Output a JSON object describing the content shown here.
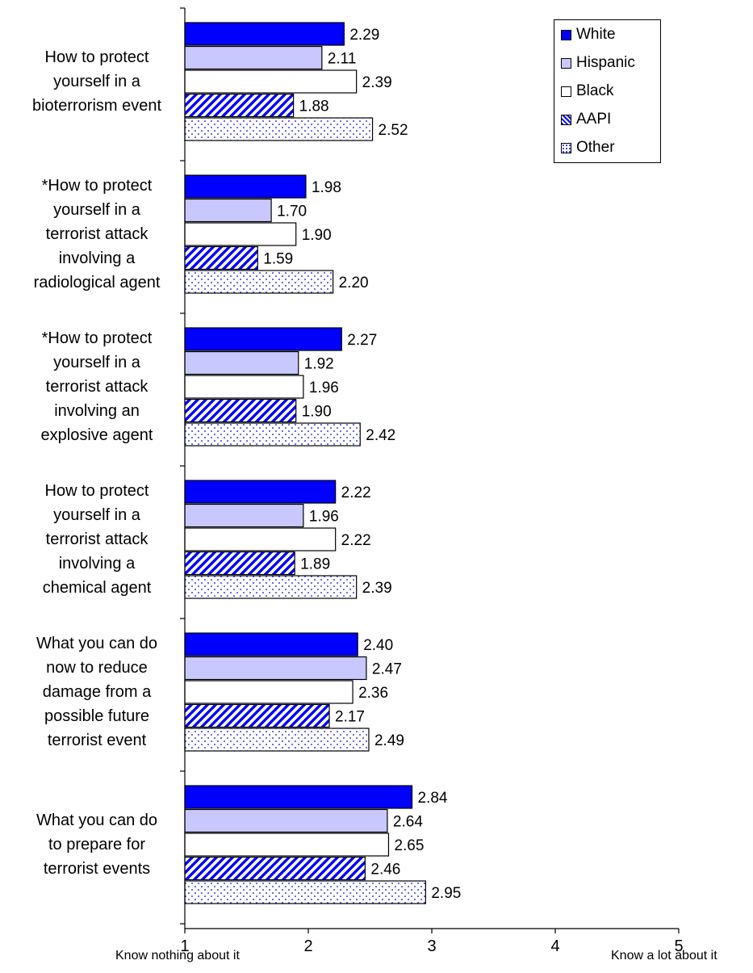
{
  "chart_data": {
    "type": "bar",
    "orientation": "horizontal",
    "categories": [
      "How to protect\nyourself in a\nbioterrorism event",
      "*How to protect\nyourself in a\nterrorist attack\ninvolving a\nradiological agent",
      "*How to protect\nyourself in a\nterrorist attack\ninvolving an\nexplosive agent",
      "How to protect\nyourself in a\nterrorist attack\ninvolving a\nchemical agent",
      "What you can do\nnow to reduce\ndamage from a\npossible future\nterrorist event",
      "What you can do\nto prepare for\nterrorist events"
    ],
    "series": [
      {
        "name": "White",
        "values": [
          2.29,
          1.98,
          2.27,
          2.22,
          2.4,
          2.84
        ],
        "labels": [
          "2.29",
          "1.98",
          "2.27",
          "2.22",
          "2.40",
          "2.84"
        ],
        "fill": "#0000ff",
        "pattern": "solid"
      },
      {
        "name": "Hispanic",
        "values": [
          2.11,
          1.7,
          1.92,
          1.96,
          2.47,
          2.64
        ],
        "labels": [
          "2.11",
          "1.70",
          "1.92",
          "1.96",
          "2.47",
          "2.64"
        ],
        "fill": "#c8c8ff",
        "pattern": "solid"
      },
      {
        "name": "Black",
        "values": [
          2.39,
          1.9,
          1.96,
          2.22,
          2.36,
          2.65
        ],
        "labels": [
          "2.39",
          "1.90",
          "1.96",
          "2.22",
          "2.36",
          "2.65"
        ],
        "fill": "#ffffff",
        "pattern": "solid"
      },
      {
        "name": "AAPI",
        "values": [
          1.88,
          1.59,
          1.9,
          1.89,
          2.17,
          2.46
        ],
        "labels": [
          "1.88",
          "1.59",
          "1.90",
          "1.89",
          "2.17",
          "2.46"
        ],
        "fill": "#0000ff",
        "pattern": "diagonal"
      },
      {
        "name": "Other",
        "values": [
          2.52,
          2.2,
          2.42,
          2.39,
          2.49,
          2.95
        ],
        "labels": [
          "2.52",
          "2.20",
          "2.42",
          "2.39",
          "2.49",
          "2.95"
        ],
        "fill": "#0000ff",
        "pattern": "dots"
      }
    ],
    "xlim": [
      1,
      5
    ],
    "xticks": [
      "1",
      "2",
      "3",
      "4",
      "5"
    ],
    "x_low_label": "Know nothing about it",
    "x_high_label": "Know a lot about it",
    "title": "",
    "xlabel": "",
    "ylabel": "",
    "legend_position": "top-right",
    "grid": false
  }
}
